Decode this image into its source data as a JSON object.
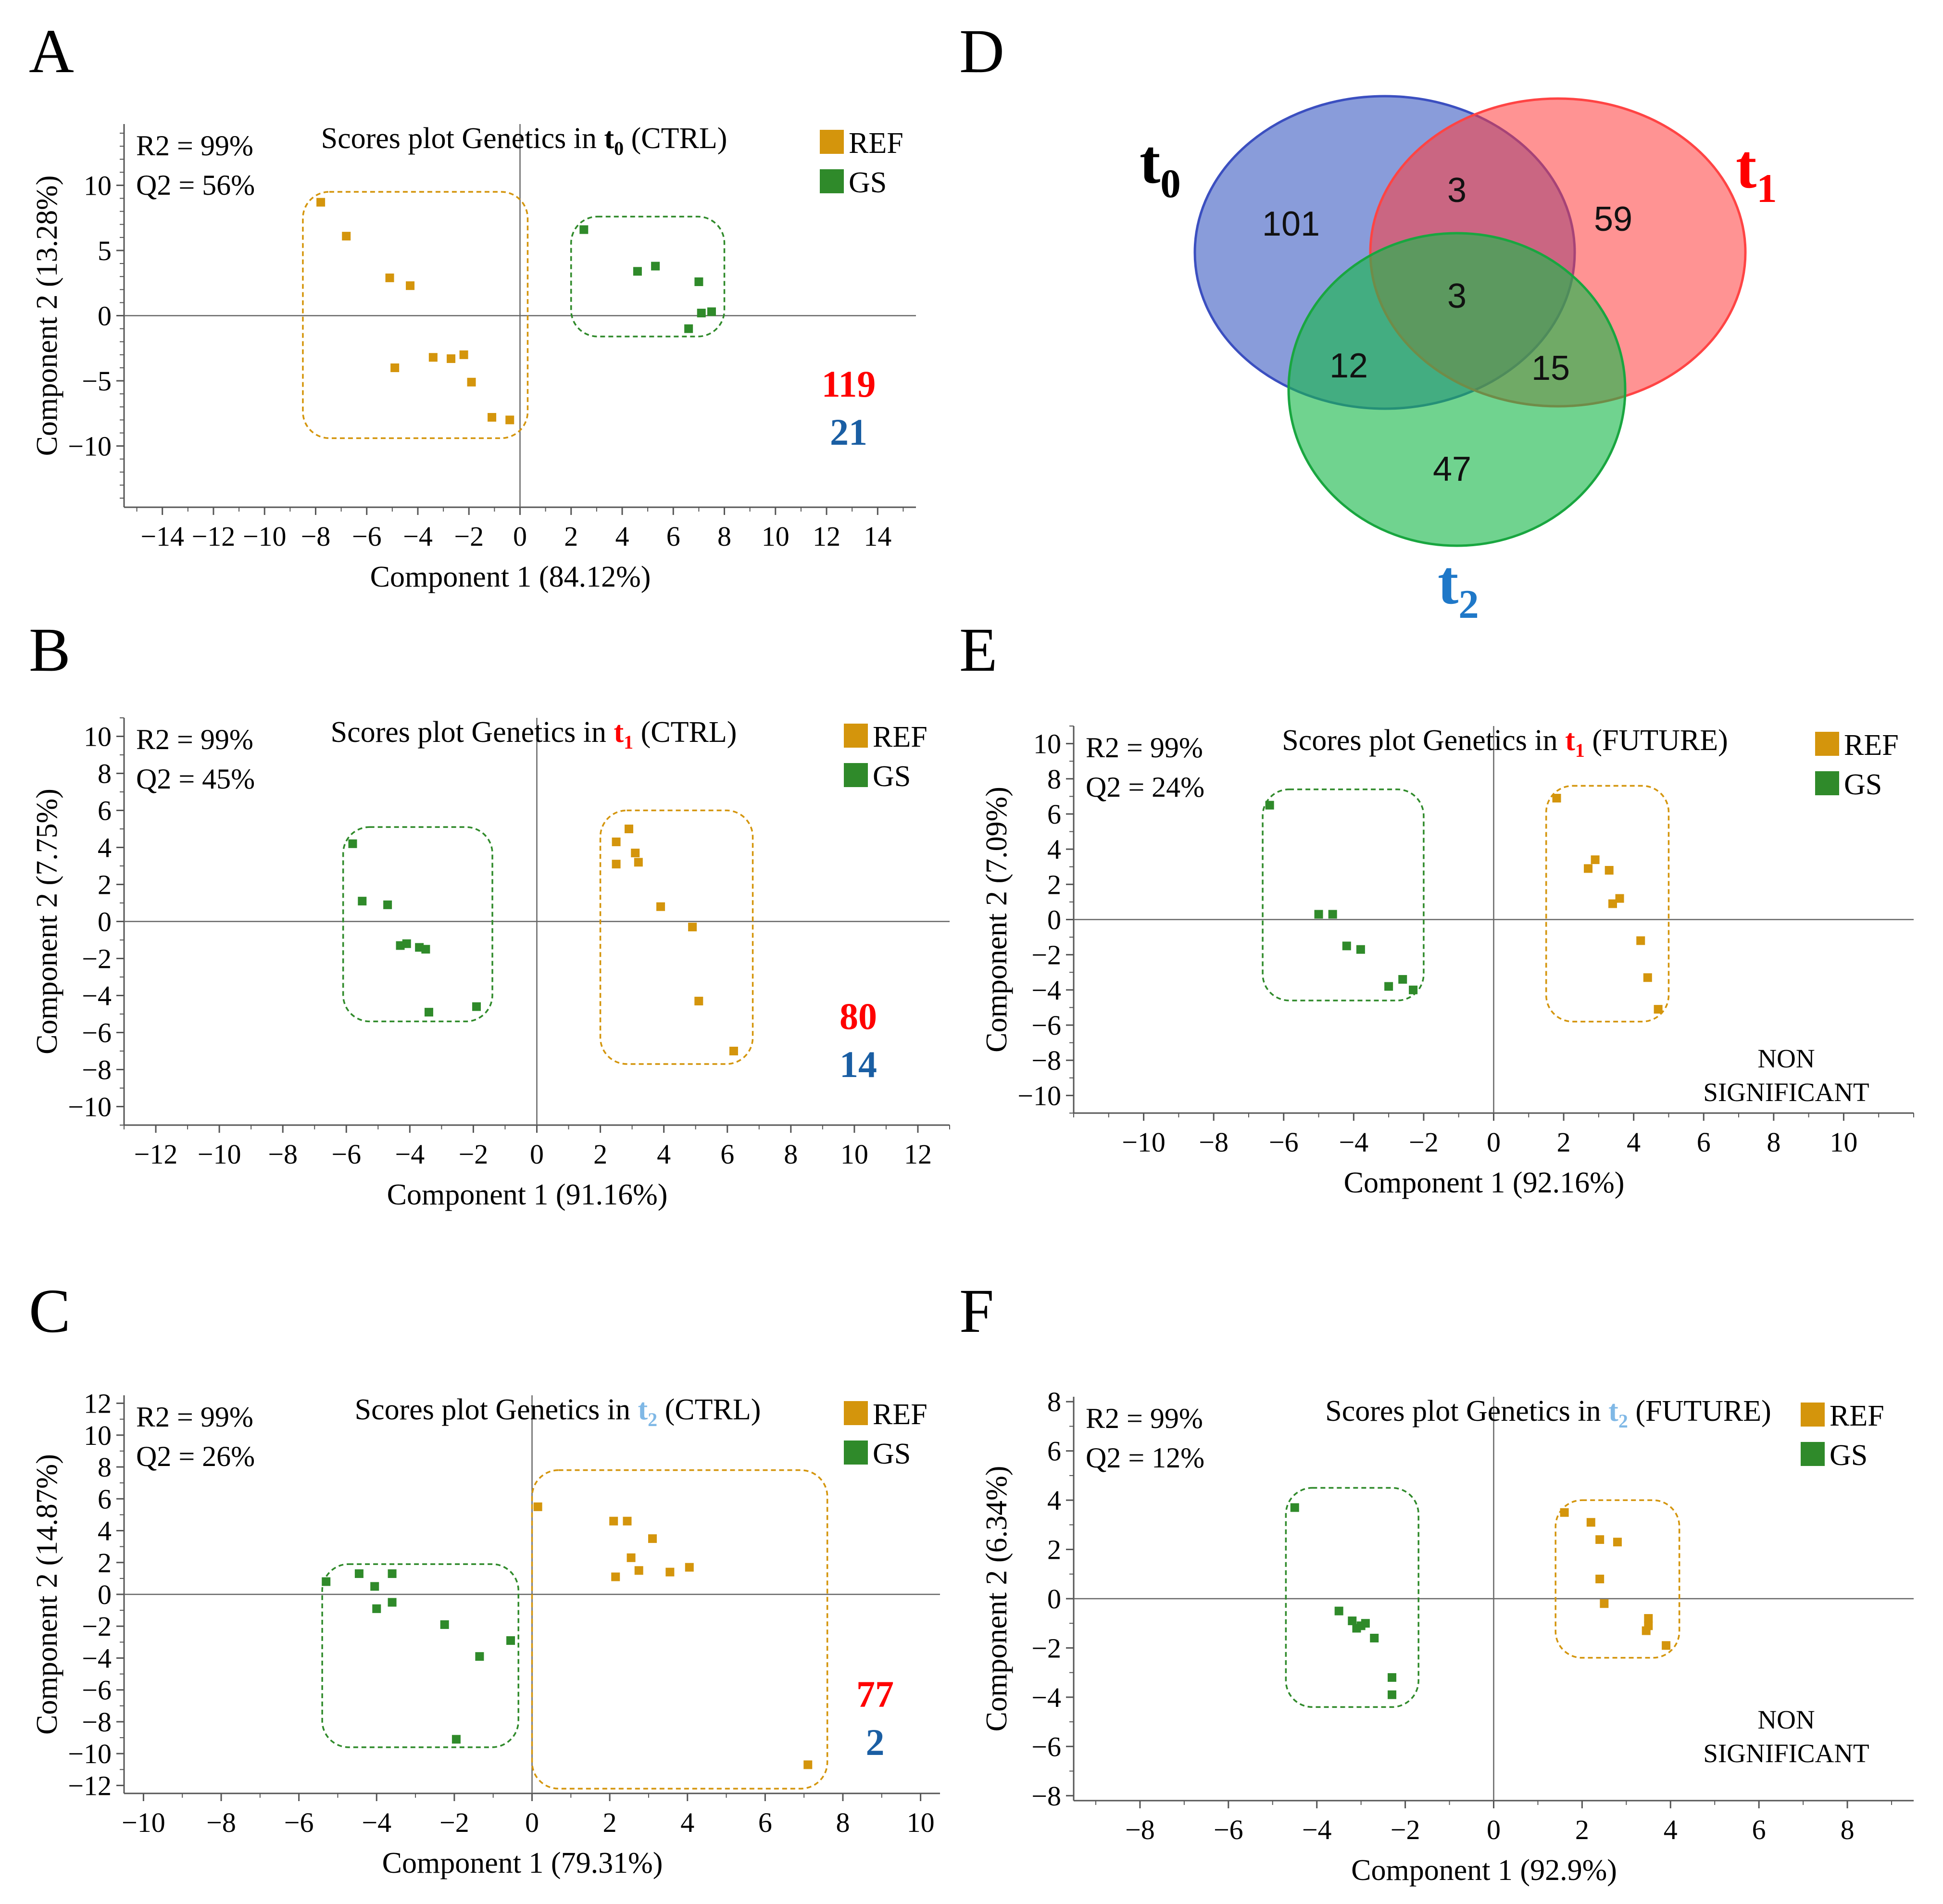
{
  "colors": {
    "ref": "#d4950c",
    "gs": "#2f8a2a",
    "sig_ref": "#ff0000",
    "sig_gs": "#1a5ea3",
    "t0": "#000000",
    "t1": "#ff0000",
    "t2": "#1f78c8",
    "t2_light": "#7fb8e6"
  },
  "chart_data": [
    {
      "id": "A",
      "type": "scatter",
      "title_prefix": "Scores plot Genetics in ",
      "title_t": "t",
      "title_sub": "0",
      "title_suffix": " (CTRL)",
      "title_color": "t0",
      "xlabel": "Component 1 (84.12%)",
      "ylabel": "Component 2 (13.28%)",
      "xlim": [
        -15.5,
        15.5
      ],
      "ylim": [
        -14.7,
        14.7
      ],
      "xticks": [
        -14,
        -12,
        -10,
        -8,
        -6,
        -4,
        -2,
        0,
        2,
        4,
        6,
        8,
        10,
        12,
        14
      ],
      "yticks": [
        -10,
        -5,
        0,
        5,
        10
      ],
      "stats": [
        "R2 = 99%",
        "Q2 = 56%"
      ],
      "legend": [
        "REF",
        "GS"
      ],
      "sig": [
        "119",
        "21"
      ],
      "series": [
        {
          "name": "REF",
          "x": [
            -7.8,
            -6.8,
            -5.1,
            -4.3,
            -4.9,
            -3.4,
            -2.7,
            -2.2,
            -1.9,
            -1.1,
            -0.4
          ],
          "y": [
            8.7,
            6.1,
            2.9,
            2.3,
            -4.0,
            -3.2,
            -3.3,
            -3.0,
            -5.1,
            -7.8,
            -8.0
          ]
        },
        {
          "name": "GS",
          "x": [
            2.5,
            4.6,
            5.3,
            7.0,
            7.1,
            7.5,
            6.6
          ],
          "y": [
            6.6,
            3.4,
            3.8,
            2.6,
            0.2,
            0.3,
            -1.0
          ]
        }
      ],
      "boxes": [
        {
          "group": "REF",
          "x": [
            -8.5,
            0.3
          ],
          "y": [
            -9.4,
            9.5
          ]
        },
        {
          "group": "GS",
          "x": [
            2.0,
            8.0
          ],
          "y": [
            -1.6,
            7.6
          ]
        }
      ]
    },
    {
      "id": "B",
      "type": "scatter",
      "title_prefix": "Scores plot Genetics in ",
      "title_t": "t",
      "title_sub": "1",
      "title_suffix": " (CTRL)",
      "title_color": "t1",
      "xlabel": "Component 1 (91.16%)",
      "ylabel": "Component 2 (7.75%)",
      "xlim": [
        -13.0,
        13.0
      ],
      "ylim": [
        -11.0,
        11.0
      ],
      "xticks": [
        -12,
        -10,
        -8,
        -6,
        -4,
        -2,
        0,
        2,
        4,
        6,
        8,
        10,
        12
      ],
      "yticks": [
        -10,
        -8,
        -6,
        -4,
        -2,
        0,
        2,
        4,
        6,
        8,
        10
      ],
      "stats": [
        "R2 = 99%",
        "Q2 = 45%"
      ],
      "legend": [
        "REF",
        "GS"
      ],
      "sig": [
        "80",
        "14"
      ],
      "series": [
        {
          "name": "REF",
          "x": [
            2.5,
            2.9,
            2.5,
            3.1,
            3.2,
            3.9,
            4.9,
            5.1,
            6.2
          ],
          "y": [
            4.3,
            5.0,
            3.1,
            3.7,
            3.2,
            0.8,
            -0.3,
            -4.3,
            -7.0
          ]
        },
        {
          "name": "GS",
          "x": [
            -5.8,
            -5.5,
            -4.7,
            -4.3,
            -4.1,
            -3.7,
            -3.5,
            -3.4,
            -1.9
          ],
          "y": [
            4.2,
            1.1,
            0.9,
            -1.3,
            -1.2,
            -1.4,
            -1.5,
            -4.9,
            -4.6
          ]
        }
      ],
      "boxes": [
        {
          "group": "GS",
          "x": [
            -6.1,
            -1.4
          ],
          "y": [
            -5.4,
            5.1
          ]
        },
        {
          "group": "REF",
          "x": [
            2.0,
            6.8
          ],
          "y": [
            -7.7,
            6.0
          ]
        }
      ]
    },
    {
      "id": "C",
      "type": "scatter",
      "title_prefix": "Scores plot Genetics in ",
      "title_t": "t",
      "title_sub": "2",
      "title_suffix": " (CTRL)",
      "title_color": "t2_light",
      "xlabel": "Component 1 (79.31%)",
      "ylabel": "Component 2 (14.87%)",
      "xlim": [
        -10.5,
        10.5
      ],
      "ylim": [
        -12.5,
        12.5
      ],
      "xticks": [
        -10,
        -8,
        -6,
        -4,
        -2,
        0,
        2,
        4,
        6,
        8,
        10
      ],
      "yticks": [
        -12,
        -10,
        -8,
        -6,
        -4,
        -2,
        0,
        2,
        4,
        6,
        8,
        10,
        12
      ],
      "stats": [
        "R2 = 99%",
        "Q2 = 26%"
      ],
      "legend": [
        "REF",
        "GS"
      ],
      "sig": [
        "77",
        "2"
      ],
      "series": [
        {
          "name": "REF",
          "x": [
            0.15,
            2.1,
            2.45,
            3.1,
            2.55,
            2.75,
            2.15,
            3.55,
            4.05,
            7.1
          ],
          "y": [
            5.5,
            4.6,
            4.6,
            3.5,
            2.3,
            1.5,
            1.1,
            1.4,
            1.7,
            -10.7
          ]
        },
        {
          "name": "GS",
          "x": [
            -5.3,
            -4.45,
            -4.05,
            -3.6,
            -4.0,
            -3.6,
            -2.25,
            -1.35,
            -0.55,
            -1.95
          ],
          "y": [
            0.8,
            1.3,
            0.5,
            1.3,
            -0.9,
            -0.5,
            -1.9,
            -3.9,
            -2.9,
            -9.1
          ]
        }
      ],
      "boxes": [
        {
          "group": "GS",
          "x": [
            -5.4,
            -0.35
          ],
          "y": [
            -9.6,
            1.9
          ]
        },
        {
          "group": "REF",
          "x": [
            0.0,
            7.6
          ],
          "y": [
            -12.2,
            7.8
          ]
        }
      ]
    },
    {
      "id": "E",
      "type": "scatter",
      "title_prefix": "Scores plot Genetics in ",
      "title_t": "t",
      "title_sub": "1",
      "title_suffix": " (FUTURE)",
      "title_color": "t1",
      "xlabel": "Component 1 (92.16%)",
      "ylabel": "Component 2 (7.09%)",
      "xlim": [
        -12.0,
        12.0
      ],
      "ylim": [
        -11.0,
        11.0
      ],
      "xticks": [
        -10,
        -8,
        -6,
        -4,
        -2,
        0,
        2,
        4,
        6,
        8,
        10
      ],
      "yticks": [
        -10,
        -8,
        -6,
        -4,
        -2,
        0,
        2,
        4,
        6,
        8,
        10
      ],
      "stats": [
        "R2 = 99%",
        "Q2 = 24%"
      ],
      "legend": [
        "REF",
        "GS"
      ],
      "sig_text": [
        "NON",
        "SIGNIFICANT"
      ],
      "series": [
        {
          "name": "REF",
          "x": [
            1.8,
            2.7,
            2.9,
            3.3,
            3.4,
            3.6,
            4.2,
            4.4,
            4.7
          ],
          "y": [
            6.9,
            2.9,
            3.4,
            2.8,
            0.9,
            1.2,
            -1.2,
            -3.3,
            -5.1
          ]
        },
        {
          "name": "GS",
          "x": [
            -6.4,
            -5.0,
            -4.6,
            -4.2,
            -3.8,
            -3.0,
            -2.6,
            -2.3
          ],
          "y": [
            6.5,
            0.3,
            0.3,
            -1.5,
            -1.7,
            -3.8,
            -3.4,
            -4.0
          ]
        }
      ],
      "boxes": [
        {
          "group": "GS",
          "x": [
            -6.6,
            -2.0
          ],
          "y": [
            -4.6,
            7.4
          ]
        },
        {
          "group": "REF",
          "x": [
            1.5,
            5.0
          ],
          "y": [
            -5.8,
            7.6
          ]
        }
      ]
    },
    {
      "id": "F",
      "type": "scatter",
      "title_prefix": "Scores plot Genetics in ",
      "title_t": "t",
      "title_sub": "2",
      "title_suffix": " (FUTURE)",
      "title_color": "t2_light",
      "xlabel": "Component 1 (92.9%)",
      "ylabel": "Component 2 (6.34%)",
      "xlim": [
        -9.5,
        9.5
      ],
      "ylim": [
        -8.2,
        8.2
      ],
      "xticks": [
        -8,
        -6,
        -4,
        -2,
        0,
        2,
        4,
        6,
        8
      ],
      "yticks": [
        -8,
        -6,
        -4,
        -2,
        0,
        2,
        4,
        6,
        8
      ],
      "stats": [
        "R2 = 99%",
        "Q2 = 12%"
      ],
      "legend": [
        "REF",
        "GS"
      ],
      "sig_text": [
        "NON",
        "SIGNIFICANT"
      ],
      "series": [
        {
          "name": "REF",
          "x": [
            1.6,
            2.2,
            2.4,
            2.8,
            2.4,
            2.5,
            3.5,
            3.5,
            3.45,
            3.9
          ],
          "y": [
            3.5,
            3.1,
            2.4,
            2.3,
            0.8,
            -0.2,
            -0.8,
            -1.1,
            -1.3,
            -1.9
          ]
        },
        {
          "name": "GS",
          "x": [
            -4.5,
            -3.5,
            -3.2,
            -3.1,
            -3.0,
            -2.9,
            -2.7,
            -2.3,
            -2.3
          ],
          "y": [
            3.7,
            -0.5,
            -0.9,
            -1.2,
            -1.1,
            -1.0,
            -1.6,
            -3.2,
            -3.9
          ]
        }
      ],
      "boxes": [
        {
          "group": "GS",
          "x": [
            -4.7,
            -1.7
          ],
          "y": [
            -4.4,
            4.5
          ]
        },
        {
          "group": "REF",
          "x": [
            1.4,
            4.2
          ],
          "y": [
            -2.4,
            4.0
          ]
        }
      ]
    },
    {
      "id": "D",
      "type": "venn",
      "sets": [
        {
          "name": "t",
          "sub": "0",
          "color": "t0"
        },
        {
          "name": "t",
          "sub": "1",
          "color": "t1"
        },
        {
          "name": "t",
          "sub": "2",
          "color": "t2"
        }
      ],
      "regions": {
        "t0_only": "101",
        "t1_only": "59",
        "t2_only": "47",
        "t0_t1": "3",
        "t0_t2": "12",
        "t1_t2": "15",
        "t0_t1_t2": "3"
      }
    }
  ],
  "panel_letters": [
    "A",
    "B",
    "C",
    "D",
    "E",
    "F"
  ]
}
